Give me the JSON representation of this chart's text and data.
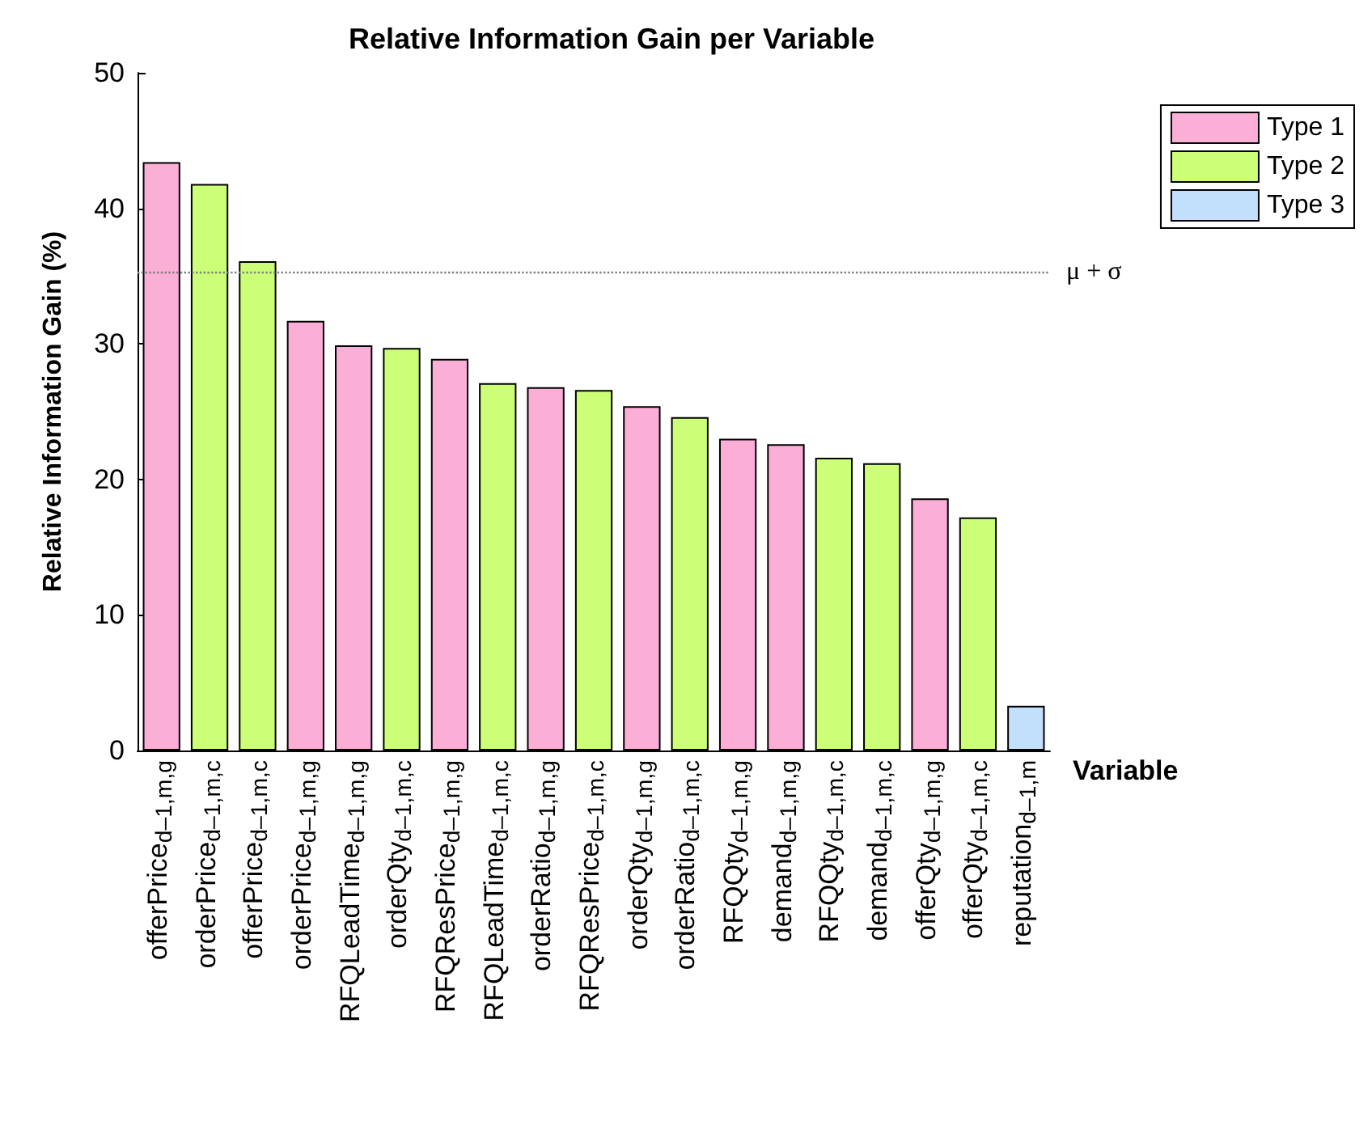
{
  "chart_data": {
    "type": "bar",
    "title": "Relative Information Gain per Variable",
    "xlabel": "Variable",
    "ylabel": "Relative Information Gain (%)",
    "categories": [
      "offerPrice$_{d–1,m,g}$",
      "orderPrice$_{d–1,m,c}$",
      "offerPrice$_{d–1,m,c}$",
      "orderPrice$_{d–1,m,g}$",
      "RFQLeadTime$_{d–1,m,g}$",
      "orderQty$_{d–1,m,c}$",
      "RFQResPrice$_{d–1,m,g}$",
      "RFQLeadTime$_{d–1,m,c}$",
      "orderRatio$_{d–1,m,g}$",
      "RFQResPrice$_{d–1,m,c}$",
      "orderQty$_{d–1,m,g}$",
      "orderRatio$_{d–1,m,c}$",
      "RFQQty$_{d–1,m,g}$",
      "demand$_{d–1,m,g}$",
      "RFQQty$_{d–1,m,c}$",
      "demand$_{d–1,m,c}$",
      "offerQty$_{d–1,m,g}$",
      "offerQty$_{d–1,m,c}$",
      "reputation$_{d–1,m}$"
    ],
    "series": [
      {
        "name": "Type 1",
        "color": "#fbaed6",
        "values": [
          43.4,
          null,
          null,
          31.7,
          29.9,
          null,
          28.9,
          null,
          26.8,
          null,
          25.4,
          null,
          23.0,
          22.6,
          null,
          null,
          18.6,
          null,
          null
        ]
      },
      {
        "name": "Type 2",
        "color": "#ccff77",
        "values": [
          null,
          41.8,
          36.1,
          null,
          null,
          29.7,
          null,
          27.1,
          null,
          26.6,
          null,
          24.6,
          null,
          null,
          21.6,
          21.2,
          null,
          17.2,
          null
        ]
      },
      {
        "name": "Type 3",
        "color": "#c2e0fb",
        "values": [
          null,
          null,
          null,
          null,
          null,
          null,
          null,
          null,
          null,
          null,
          null,
          null,
          null,
          null,
          null,
          null,
          null,
          null,
          3.3
        ]
      }
    ],
    "ylim": [
      0,
      50
    ],
    "yticks": [
      0,
      10,
      20,
      30,
      40,
      50
    ],
    "grid": false,
    "legend": "top right",
    "ref_lines": [
      {
        "axis": "y",
        "value": 35.3,
        "label": "μ + σ",
        "color": "#808080",
        "line_style": "dotted"
      }
    ]
  }
}
